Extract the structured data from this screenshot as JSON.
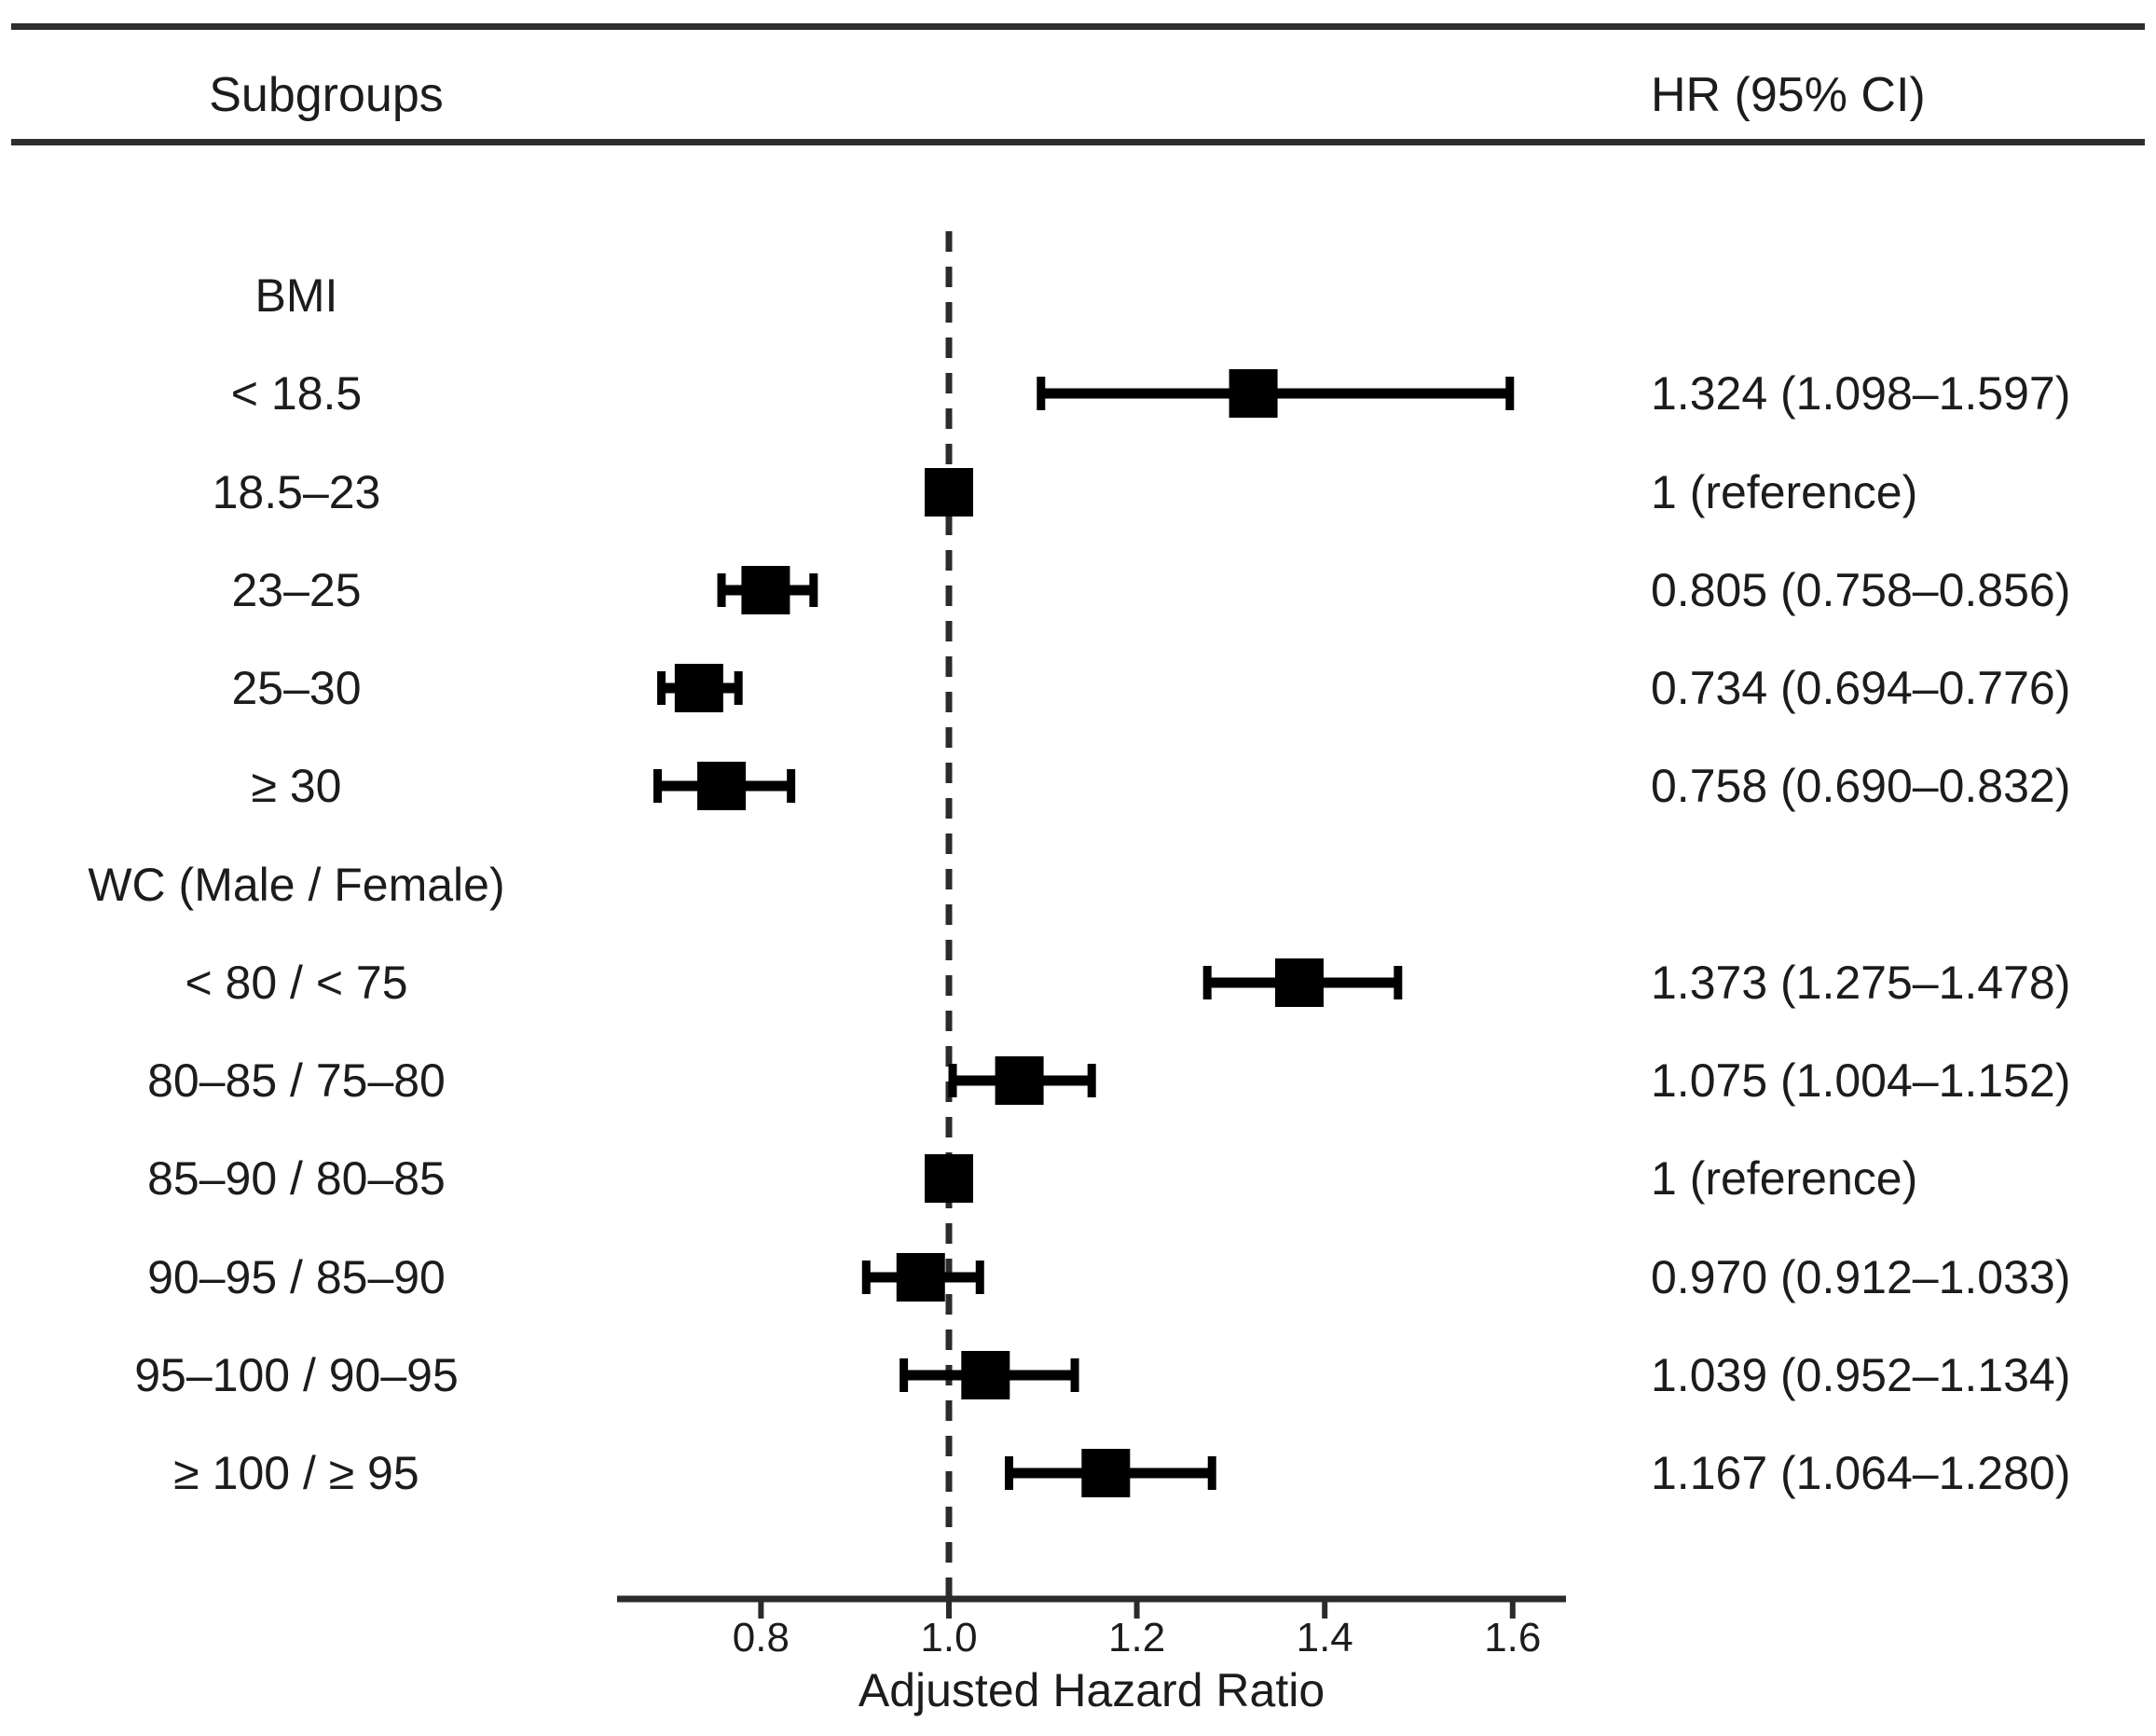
{
  "header": {
    "subgroups_label": "Subgroups",
    "hr_ci_label": "HR (95% CI)"
  },
  "colors": {
    "marker": "#000000",
    "line": "#2b2b2b",
    "text": "#1c1c1c"
  },
  "chart_data": {
    "type": "forest",
    "xlabel": "Adjusted Hazard Ratio",
    "x_ticks": [
      0.8,
      1.0,
      1.2,
      1.4,
      1.6
    ],
    "x_tick_labels": [
      "0.8",
      "1.0",
      "1.2",
      "1.4",
      "1.6"
    ],
    "x_axis_range": [
      0.645,
      1.657
    ],
    "reference_line": 1.0,
    "grid": false,
    "rows": [
      {
        "kind": "header",
        "label": "BMI"
      },
      {
        "kind": "estimate",
        "label": "< 18.5",
        "hr": 1.324,
        "ci_low": 1.098,
        "ci_high": 1.597,
        "hr_text": "1.324 (1.098–1.597)"
      },
      {
        "kind": "reference",
        "label": "18.5–23",
        "hr": 1.0,
        "hr_text": "1 (reference)"
      },
      {
        "kind": "estimate",
        "label": "23–25",
        "hr": 0.805,
        "ci_low": 0.758,
        "ci_high": 0.856,
        "hr_text": "0.805 (0.758–0.856)"
      },
      {
        "kind": "estimate",
        "label": "25–30",
        "hr": 0.734,
        "ci_low": 0.694,
        "ci_high": 0.776,
        "hr_text": "0.734 (0.694–0.776)"
      },
      {
        "kind": "estimate",
        "label": "≥ 30",
        "hr": 0.758,
        "ci_low": 0.69,
        "ci_high": 0.832,
        "hr_text": "0.758 (0.690–0.832)"
      },
      {
        "kind": "header",
        "label": "WC (Male / Female)"
      },
      {
        "kind": "estimate",
        "label": "< 80 / < 75",
        "hr": 1.373,
        "ci_low": 1.275,
        "ci_high": 1.478,
        "hr_text": "1.373 (1.275–1.478)"
      },
      {
        "kind": "estimate",
        "label": "80–85 / 75–80",
        "hr": 1.075,
        "ci_low": 1.004,
        "ci_high": 1.152,
        "hr_text": "1.075 (1.004–1.152)"
      },
      {
        "kind": "reference",
        "label": "85–90 / 80–85",
        "hr": 1.0,
        "hr_text": "1 (reference)"
      },
      {
        "kind": "estimate",
        "label": "90–95 / 85–90",
        "hr": 0.97,
        "ci_low": 0.912,
        "ci_high": 1.033,
        "hr_text": "0.970 (0.912–1.033)"
      },
      {
        "kind": "estimate",
        "label": "95–100 / 90–95",
        "hr": 1.039,
        "ci_low": 0.952,
        "ci_high": 1.134,
        "hr_text": "1.039 (0.952–1.134)"
      },
      {
        "kind": "estimate",
        "label": "≥ 100 / ≥ 95",
        "hr": 1.167,
        "ci_low": 1.064,
        "ci_high": 1.28,
        "hr_text": "1.167 (1.064–1.280)"
      }
    ]
  }
}
